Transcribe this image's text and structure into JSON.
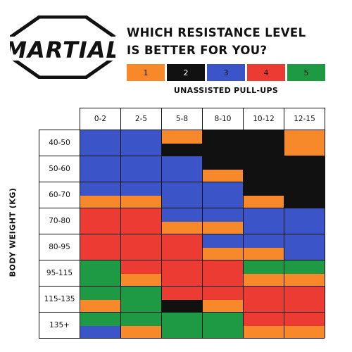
{
  "logo": {
    "text": "MARTIAL"
  },
  "title": {
    "line1": "WHICH RESISTANCE LEVEL",
    "line2": "IS BETTER FOR YOU?"
  },
  "legend": {
    "items": [
      {
        "label": "1",
        "color": "#f7892a"
      },
      {
        "label": "2",
        "color": "#111111"
      },
      {
        "label": "3",
        "color": "#3b55c9"
      },
      {
        "label": "4",
        "color": "#ec3b33"
      },
      {
        "label": "5",
        "color": "#1f9a44"
      }
    ],
    "caption": "UNASSISTED PULL-UPS"
  },
  "y_label": "BODY WEIGHT (KG)",
  "columns": [
    "0-2",
    "2-5",
    "5-8",
    "8-10",
    "10-12",
    "12-15"
  ],
  "rows": [
    "40-50",
    "50-60",
    "60-70",
    "70-80",
    "80-95",
    "95-115",
    "115-135",
    "135+"
  ],
  "cells": [
    [
      [
        "3"
      ],
      [
        "3"
      ],
      [
        "1",
        "2"
      ],
      [
        "2"
      ],
      [
        "2"
      ],
      [
        "1"
      ]
    ],
    [
      [
        "3"
      ],
      [
        "3"
      ],
      [
        "3"
      ],
      [
        "2",
        "1"
      ],
      [
        "2"
      ],
      [
        "2"
      ]
    ],
    [
      [
        "3",
        "1"
      ],
      [
        "3",
        "1"
      ],
      [
        "3"
      ],
      [
        "3"
      ],
      [
        "2",
        "1"
      ],
      [
        "2"
      ]
    ],
    [
      [
        "4"
      ],
      [
        "4"
      ],
      [
        "3",
        "1"
      ],
      [
        "3",
        "1"
      ],
      [
        "3"
      ],
      [
        "3"
      ]
    ],
    [
      [
        "4"
      ],
      [
        "4"
      ],
      [
        "4"
      ],
      [
        "3",
        "1"
      ],
      [
        "3",
        "1"
      ],
      [
        "3"
      ]
    ],
    [
      [
        "5"
      ],
      [
        "4",
        "1"
      ],
      [
        "4"
      ],
      [
        "4"
      ],
      [
        "5",
        "1"
      ],
      [
        "5",
        "1"
      ]
    ],
    [
      [
        "5",
        "1"
      ],
      [
        "5"
      ],
      [
        "4",
        "2"
      ],
      [
        "4",
        "1"
      ],
      [
        "4"
      ],
      [
        "4"
      ]
    ],
    [
      [
        "5",
        "3"
      ],
      [
        "5",
        "1"
      ],
      [
        "5"
      ],
      [
        "5"
      ],
      [
        "4",
        "1"
      ],
      [
        "4",
        "1"
      ]
    ]
  ]
}
